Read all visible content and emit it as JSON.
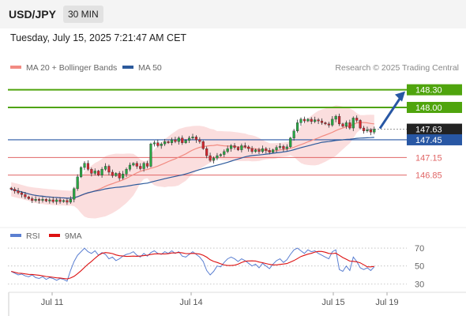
{
  "header": {
    "symbol": "USD/JPY",
    "timeframe": "30 MIN",
    "datetime": "Tuesday, July 15, 2025 7:21:47 AM CET"
  },
  "legend": [
    {
      "label": "MA 20 + Bollinger Bands",
      "color": "#f28b82"
    },
    {
      "label": "MA 50",
      "color": "#2c5a9c"
    }
  ],
  "credit": "Research © 2025 Trading Central",
  "colors": {
    "up": "#27a843",
    "down": "#d6262e",
    "target": "#4fa40d",
    "current": "#222222",
    "pivot": "#2857a4",
    "support": "#e06666",
    "arrow": "#2857a4",
    "band": "#f9d0d0"
  },
  "chart_data": [
    {
      "type": "candlestick",
      "ylim": [
        146.0,
        148.55
      ],
      "x_labels": [
        "Jul 11",
        "Jul 14",
        "Jul 15",
        "Jul 19"
      ],
      "close_series": [
        146.61,
        146.58,
        146.55,
        146.52,
        146.48,
        146.45,
        146.42,
        146.44,
        146.42,
        146.44,
        146.41,
        146.43,
        146.4,
        146.43,
        146.4,
        146.42,
        146.39,
        146.44,
        146.62,
        146.82,
        146.98,
        147.05,
        146.95,
        146.88,
        146.92,
        146.85,
        146.95,
        147.0,
        146.9,
        146.84,
        146.88,
        146.8,
        146.87,
        146.95,
        147.02,
        147.05,
        147.0,
        146.96,
        147.05,
        147.0,
        147.38,
        147.4,
        147.35,
        147.38,
        147.42,
        147.4,
        147.45,
        147.42,
        147.48,
        147.4,
        147.44,
        147.48,
        147.5,
        147.45,
        147.42,
        147.3,
        147.18,
        147.1,
        147.14,
        147.18,
        147.2,
        147.25,
        147.3,
        147.35,
        147.32,
        147.28,
        147.35,
        147.33,
        147.3,
        147.25,
        147.28,
        147.25,
        147.3,
        147.27,
        147.24,
        147.28,
        147.32,
        147.34,
        147.3,
        147.33,
        147.48,
        147.6,
        147.74,
        147.8,
        147.77,
        147.8,
        147.76,
        147.79,
        147.77,
        147.74,
        147.72,
        147.7,
        147.8,
        147.85,
        147.72,
        147.68,
        147.74,
        147.65,
        147.82,
        147.78,
        147.65,
        147.6,
        147.62,
        147.58,
        147.63
      ],
      "levels": [
        {
          "label": "148.30",
          "value": 148.3,
          "kind": "target"
        },
        {
          "label": "148.00",
          "value": 148.0,
          "kind": "target"
        },
        {
          "label": "147.63",
          "value": 147.63,
          "kind": "current"
        },
        {
          "label": "147.45",
          "value": 147.45,
          "kind": "pivot"
        },
        {
          "label": "147.15",
          "value": 147.15,
          "kind": "support"
        },
        {
          "label": "146.85",
          "value": 146.85,
          "kind": "support"
        }
      ]
    },
    {
      "type": "line",
      "series_labels": [
        {
          "label": "RSI",
          "color": "#5b7fd1"
        },
        {
          "label": "9MA",
          "color": "#dd1111"
        }
      ],
      "ylim": [
        25,
        78
      ],
      "ticks": [
        70,
        50,
        30
      ],
      "rsi_values": [
        44,
        42,
        40,
        41,
        39,
        38,
        40,
        37,
        36,
        38,
        35,
        37,
        36,
        34,
        36,
        35,
        33,
        45,
        55,
        62,
        66,
        70,
        66,
        64,
        67,
        62,
        65,
        63,
        58,
        60,
        56,
        58,
        61,
        63,
        64,
        66,
        62,
        60,
        64,
        61,
        65,
        67,
        64,
        63,
        66,
        64,
        67,
        64,
        66,
        61,
        60,
        63,
        66,
        63,
        60,
        55,
        45,
        40,
        44,
        50,
        49,
        54,
        58,
        60,
        58,
        55,
        58,
        56,
        53,
        50,
        52,
        48,
        53,
        50,
        47,
        52,
        56,
        58,
        54,
        57,
        63,
        68,
        70,
        67,
        64,
        68,
        66,
        67,
        64,
        62,
        60,
        58,
        66,
        68,
        46,
        44,
        50,
        45,
        60,
        55,
        48,
        46,
        48,
        45,
        49
      ]
    }
  ]
}
